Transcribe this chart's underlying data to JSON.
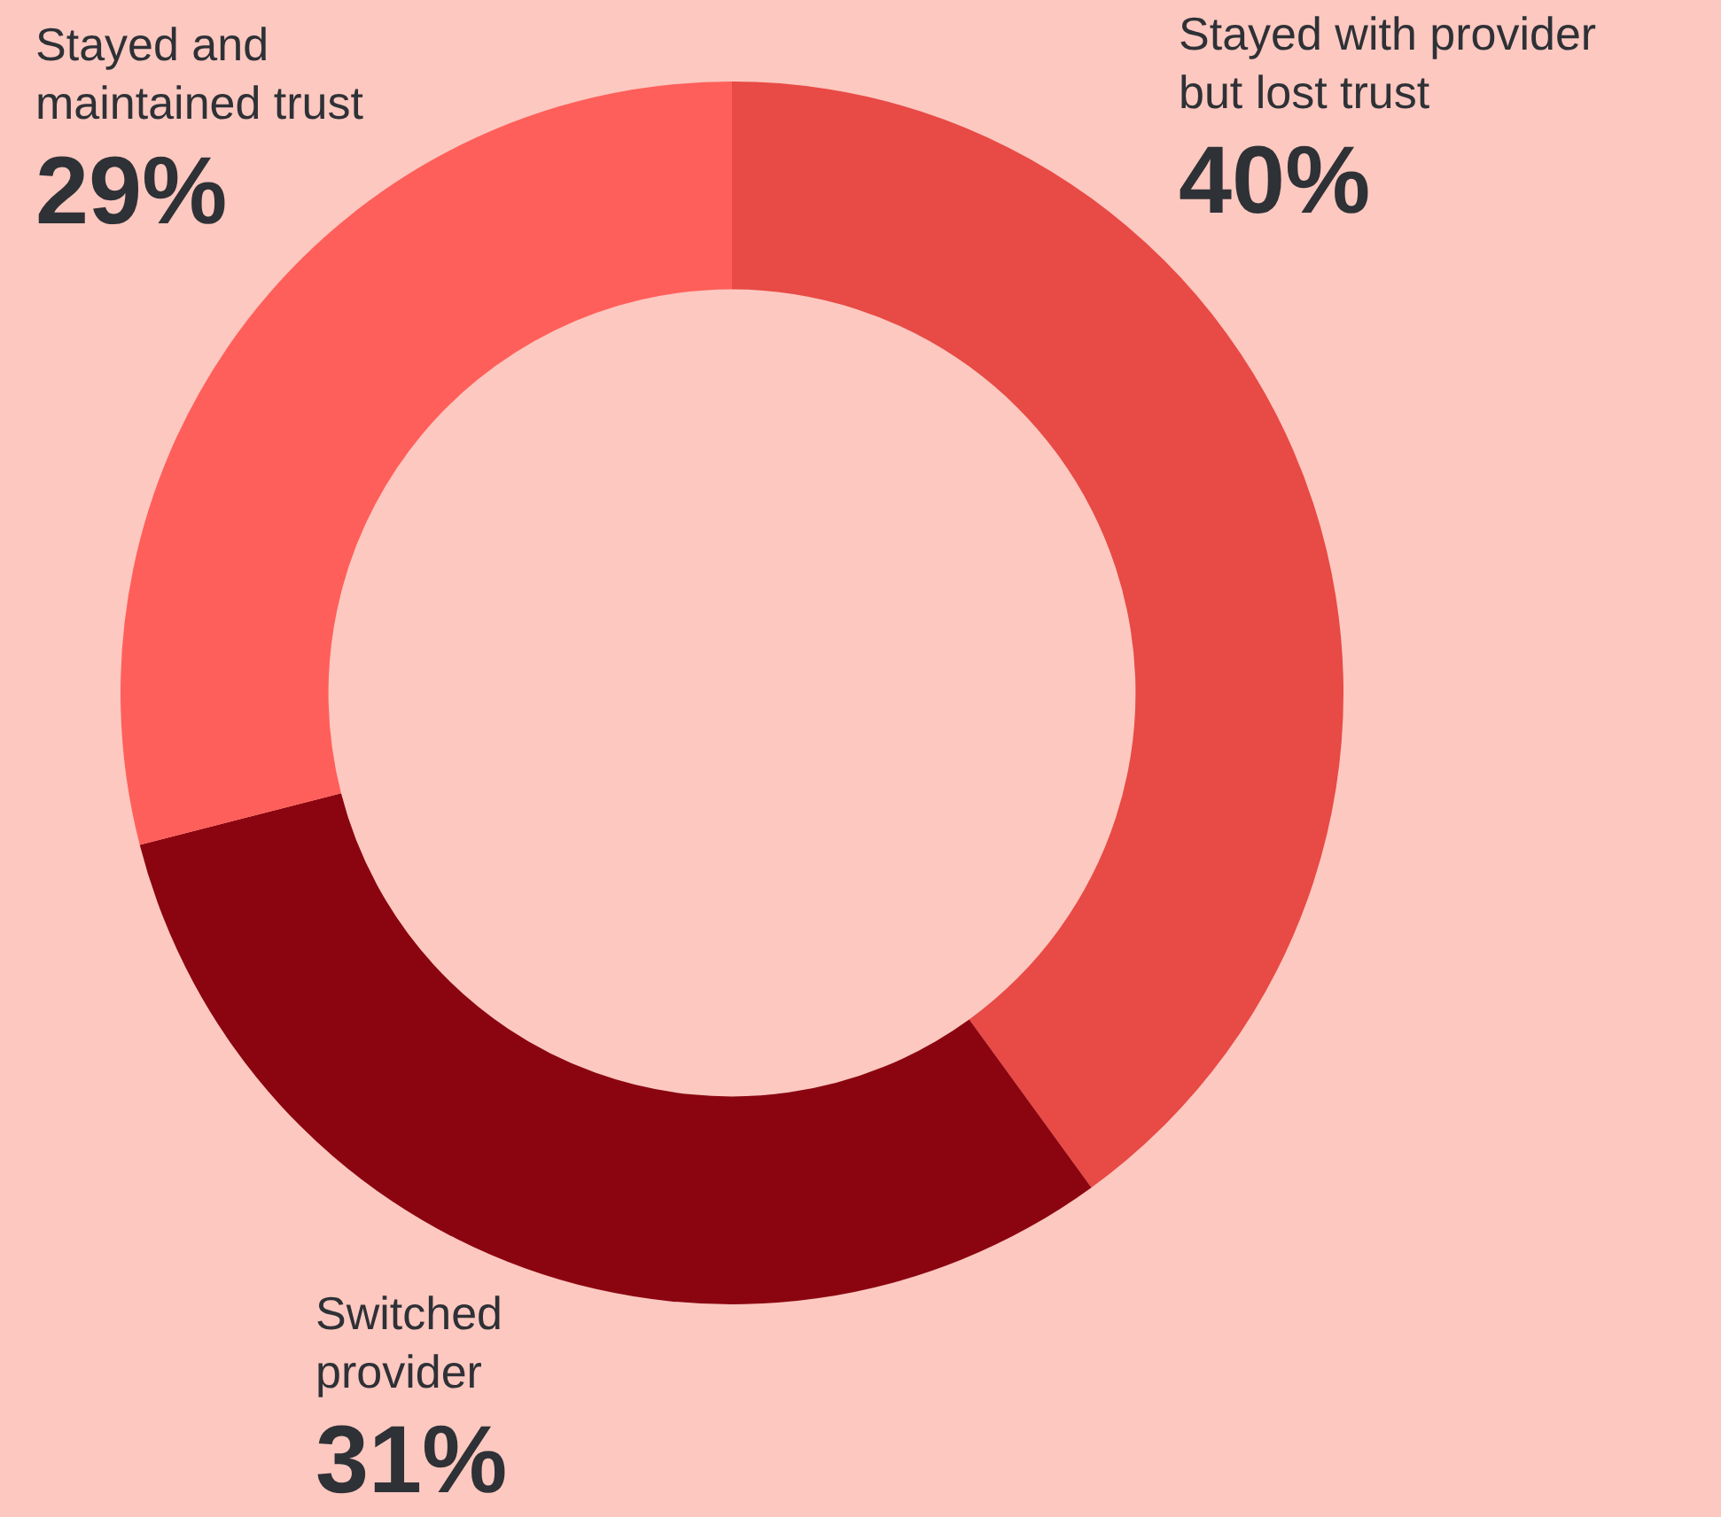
{
  "chart_data": {
    "type": "donut",
    "categories": [
      "Stayed with provider\nbut lost trust",
      "Switched\nprovider",
      "Stayed and\nmaintained trust"
    ],
    "values": [
      40,
      31,
      29
    ],
    "value_labels": [
      "40%",
      "31%",
      "29%"
    ],
    "colors": [
      "#e84a45",
      "#8b0510",
      "#ff5f5a"
    ],
    "legend": false
  }
}
